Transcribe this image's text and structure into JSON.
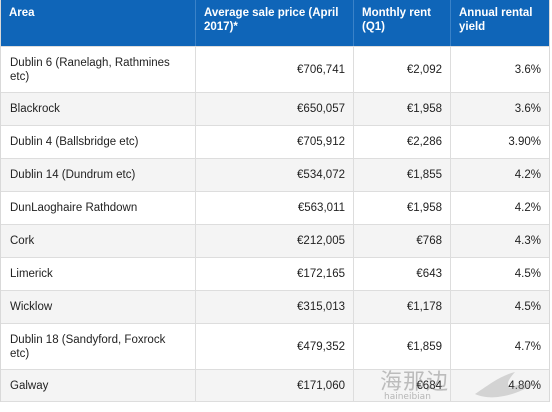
{
  "headers": {
    "area": "Area",
    "price": "Average sale price (April 2017)*",
    "rent": "Monthly rent (Q1)",
    "yield": "Annual rental yield"
  },
  "rows": [
    {
      "area": "Dublin 6 (Ranelagh, Rathmines etc)",
      "price": "€706,741",
      "rent": "€2,092",
      "yield": "3.6%"
    },
    {
      "area": "Blackrock",
      "price": "€650,057",
      "rent": "€1,958",
      "yield": "3.6%"
    },
    {
      "area": "Dublin 4 (Ballsbridge etc)",
      "price": "€705,912",
      "rent": "€2,286",
      "yield": "3.90%"
    },
    {
      "area": "Dublin 14 (Dundrum etc)",
      "price": "€534,072",
      "rent": "€1,855",
      "yield": "4.2%"
    },
    {
      "area": "DunLaoghaire Rathdown",
      "price": "€563,011",
      "rent": "€1,958",
      "yield": "4.2%"
    },
    {
      "area": "Cork",
      "price": "€212,005",
      "rent": "€768",
      "yield": "4.3%"
    },
    {
      "area": "Limerick",
      "price": "€172,165",
      "rent": "€643",
      "yield": "4.5%"
    },
    {
      "area": "Wicklow",
      "price": "€315,013",
      "rent": "€1,178",
      "yield": "4.5%"
    },
    {
      "area": "Dublin 18 (Sandyford, Foxrock etc)",
      "price": "€479,352",
      "rent": "€1,859",
      "yield": "4.7%"
    },
    {
      "area": "Galway",
      "price": "€171,060",
      "rent": "€684",
      "yield": "4.80%"
    }
  ],
  "watermark": {
    "text": "海那边",
    "sub": "haineibian"
  }
}
